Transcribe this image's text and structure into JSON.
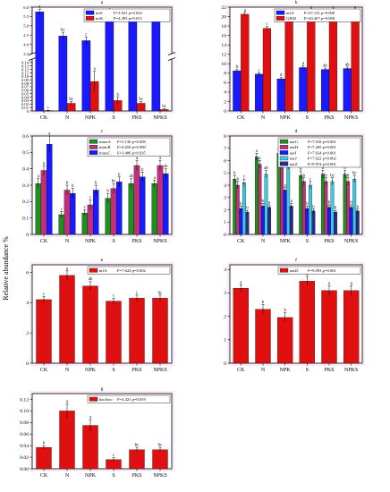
{
  "figure": {
    "ylabel": "Relative abundance %"
  },
  "chart_data": [
    {
      "panel": "a",
      "type": "bar",
      "categories": [
        "CK",
        "N",
        "NPK",
        "S",
        "PKS",
        "NPKS"
      ],
      "axis_break": [
        0.15,
        3.5
      ],
      "ylim": [
        0,
        6.0
      ],
      "yticks": [
        0,
        0.01,
        0.02,
        0.03,
        0.04,
        0.05,
        0.06,
        0.07,
        0.08,
        0.09,
        0.1,
        0.11,
        0.12,
        0.13,
        0.14,
        3.5,
        4.0,
        4.5,
        5.0,
        5.5,
        6.0
      ],
      "ytick_labels": [
        "0",
        "0.01",
        "0.02",
        "0.03",
        "0.04",
        "0.05",
        "0.06",
        "0.07",
        "0.08",
        "0.09",
        "0.10",
        "0.11",
        "0.12",
        "0.13",
        "0.14",
        "3.5",
        "4.0",
        "4.5",
        "5.0",
        "5.5",
        "6.0"
      ],
      "series": [
        {
          "name": "nirS",
          "color": "#1a1aff",
          "stat": "F=3.921 p=0.024",
          "values": [
            5.75,
            4.45,
            4.2,
            5.5,
            5.5,
            5.5
          ],
          "errors": [
            0.15,
            0.2,
            0.2,
            0.2,
            0.15,
            0.1
          ],
          "letters": [
            "a",
            "bc",
            "c",
            "ab",
            "ab",
            "ab"
          ]
        },
        {
          "name": "nirK",
          "color": "#e01010",
          "stat": "F=4.493 p=0.015",
          "values": [
            0.0,
            0.022,
            0.085,
            0.03,
            0.022,
            0.004
          ],
          "errors": [
            0.002,
            0.005,
            0.03,
            0.01,
            0.005,
            0.002
          ],
          "letters": [
            "c",
            "bc",
            "a",
            "b",
            "bc",
            "bc"
          ]
        }
      ]
    },
    {
      "panel": "b",
      "type": "bar",
      "categories": [
        "CK",
        "N",
        "NPK",
        "S",
        "PKS",
        "NPKS"
      ],
      "ylim": [
        0,
        22
      ],
      "yticks": [
        0,
        2,
        4,
        6,
        8,
        10,
        12,
        14,
        16,
        18,
        20,
        22
      ],
      "series": [
        {
          "name": "nrfA",
          "color": "#1a1aff",
          "stat": "F=27.131 p=0.000",
          "values": [
            8.5,
            7.8,
            6.8,
            9.2,
            8.8,
            9.0
          ],
          "errors": [
            0.3,
            0.3,
            0.3,
            0.4,
            0.3,
            0.3
          ],
          "letters": [
            "b",
            "c",
            "d",
            "a",
            "ab",
            "ab"
          ]
        },
        {
          "name": "GH42",
          "color": "#e01010",
          "stat": "F=20.407 p=0.000",
          "values": [
            20.5,
            17.5,
            19.5,
            21.0,
            21.0,
            21.0
          ],
          "errors": [
            0.4,
            0.4,
            0.4,
            0.4,
            0.4,
            0.4
          ],
          "letters": [
            "a",
            "c",
            "b",
            "a",
            "a",
            "a"
          ]
        }
      ]
    },
    {
      "panel": "c",
      "type": "bar",
      "categories": [
        "CK",
        "N",
        "NPK",
        "S",
        "PKS",
        "NPKS"
      ],
      "ylim": [
        0,
        0.6
      ],
      "yticks": [
        0,
        0.1,
        0.2,
        0.3,
        0.4,
        0.5,
        0.6
      ],
      "series": [
        {
          "name": "mmoA",
          "color": "#1f8f1f",
          "stat": "F=5.136 p=0.009",
          "values": [
            0.31,
            0.12,
            0.13,
            0.22,
            0.31,
            0.31
          ],
          "errors": [
            0.03,
            0.02,
            0.02,
            0.03,
            0.03,
            0.02
          ],
          "letters": [
            "a",
            "c",
            "c",
            "b",
            "ab",
            "a"
          ]
        },
        {
          "name": "mmoB",
          "color": "#c0307a",
          "stat": "F=4.659 p=0.000",
          "values": [
            0.39,
            0.27,
            0.18,
            0.28,
            0.42,
            0.42
          ],
          "errors": [
            0.03,
            0.03,
            0.03,
            0.03,
            0.03,
            0.03
          ],
          "letters": [
            "a",
            "b",
            "c",
            "bc",
            "a",
            "a"
          ]
        },
        {
          "name": "mmoC",
          "color": "#1a1aff",
          "stat": "F=3.486 p=0.035",
          "values": [
            0.55,
            0.25,
            0.27,
            0.32,
            0.35,
            0.37
          ],
          "errors": [
            0.05,
            0.03,
            0.03,
            0.03,
            0.03,
            0.03
          ],
          "letters": [
            "a",
            "b",
            "b",
            "b",
            "b",
            "ab"
          ]
        }
      ]
    },
    {
      "panel": "d",
      "type": "bar",
      "categories": [
        "CK",
        "N",
        "NPK",
        "S",
        "PKS",
        "NPKS"
      ],
      "ylim": [
        0,
        8
      ],
      "yticks": [
        0,
        1,
        2,
        3,
        4,
        5,
        6,
        7,
        8
      ],
      "series": [
        {
          "name": "narG",
          "color": "#1f8f1f",
          "stat": "F=7.018 p=0.001",
          "values": [
            4.5,
            6.3,
            6.6,
            4.8,
            4.9,
            4.9
          ],
          "errors": [
            0.3,
            0.3,
            0.3,
            0.3,
            0.3,
            0.3
          ],
          "letters": [
            "b",
            "a",
            "a",
            "b",
            "b",
            "b"
          ]
        },
        {
          "name": "narH",
          "color": "#c0307a",
          "stat": "F=7.205 p=0.001",
          "values": [
            4.0,
            5.7,
            5.7,
            4.3,
            4.3,
            4.3
          ],
          "errors": [
            0.3,
            0.3,
            0.3,
            0.3,
            0.3,
            0.3
          ],
          "letters": [
            "b",
            "a",
            "a",
            "b",
            "b",
            "b"
          ]
        },
        {
          "name": "narI",
          "color": "#1a1aff",
          "stat": "F=7.624 p=0.001",
          "values": [
            2.1,
            2.3,
            3.6,
            2.1,
            2.2,
            2.2
          ],
          "errors": [
            0.2,
            0.2,
            0.2,
            0.2,
            0.2,
            0.2
          ],
          "letters": [
            "b",
            "b",
            "a",
            "b",
            "b",
            "b"
          ]
        },
        {
          "name": "narJ",
          "color": "#40c8e0",
          "stat": "F=7.622 p=0.002",
          "values": [
            4.2,
            4.9,
            5.6,
            4.0,
            4.3,
            4.5
          ],
          "errors": [
            0.3,
            0.3,
            0.3,
            0.3,
            0.3,
            0.3
          ],
          "letters": [
            "c",
            "ab",
            "a",
            "c",
            "bc",
            "bc"
          ]
        },
        {
          "name": "narZ",
          "color": "#2a2a8a",
          "stat": "F=9.974 p=0.001",
          "values": [
            1.8,
            2.2,
            2.3,
            1.9,
            1.8,
            1.9
          ],
          "errors": [
            0.15,
            0.2,
            0.2,
            0.15,
            0.15,
            0.15
          ],
          "letters": [
            "b",
            "a",
            "a",
            "b",
            "b",
            "b"
          ]
        }
      ]
    },
    {
      "panel": "e",
      "type": "bar",
      "categories": [
        "CK",
        "N",
        "NPK",
        "S",
        "PKS",
        "NPKS"
      ],
      "ylim": [
        0,
        6.5
      ],
      "yticks": [
        0,
        2,
        4,
        6
      ],
      "series": [
        {
          "name": "nrfA",
          "color": "#e01010",
          "stat": "F=7.624 p=0.002",
          "values": [
            4.2,
            5.8,
            5.1,
            4.1,
            4.3,
            4.3
          ],
          "errors": [
            0.2,
            0.3,
            0.3,
            0.2,
            0.2,
            0.2
          ],
          "letters": [
            "c",
            "a",
            "ab",
            "c",
            "c",
            "bc"
          ]
        }
      ]
    },
    {
      "panel": "f",
      "type": "bar",
      "categories": [
        "CK",
        "N",
        "NPK",
        "S",
        "PKS",
        "NPKS"
      ],
      "ylim": [
        0,
        4.2
      ],
      "yticks": [
        0,
        1,
        2,
        3,
        4
      ],
      "series": [
        {
          "name": "nasD",
          "color": "#e01010",
          "stat": "F=9.093 p=0.001",
          "values": [
            3.2,
            2.3,
            1.95,
            3.5,
            3.1,
            3.1
          ],
          "errors": [
            0.15,
            0.2,
            0.2,
            0.2,
            0.2,
            0.2
          ],
          "letters": [
            "a",
            "b",
            "b",
            "a",
            "a",
            "a"
          ]
        }
      ]
    },
    {
      "panel": "g",
      "type": "bar",
      "categories": [
        "CK",
        "N",
        "NPK",
        "S",
        "PKS",
        "NPKS"
      ],
      "ylim": [
        0,
        0.13
      ],
      "yticks": [
        0,
        0.02,
        0.04,
        0.06,
        0.08,
        0.1,
        0.12
      ],
      "ytick_labels": [
        "0.00",
        "0.02",
        "0.04",
        "0.06",
        "0.08",
        "0.10",
        "0.12"
      ],
      "series": [
        {
          "name": "hao/hzo",
          "color": "#e01010",
          "stat": "F=4.421 p=0.019",
          "values": [
            0.037,
            0.1,
            0.075,
            0.016,
            0.033,
            0.033
          ],
          "errors": [
            0.003,
            0.012,
            0.01,
            0.003,
            0.004,
            0.004
          ],
          "letters": [
            "b",
            "a",
            "a",
            "c",
            "bc",
            "bc"
          ]
        }
      ]
    }
  ]
}
